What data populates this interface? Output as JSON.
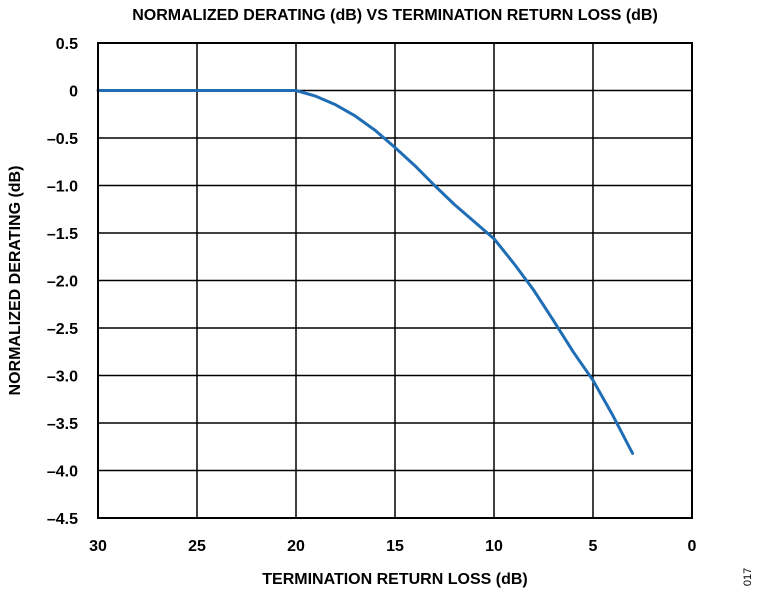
{
  "chart_data": {
    "type": "line",
    "title": "NORMALIZED DERATING (dB) VS TERMINATION RETURN LOSS (dB)",
    "xlabel": "TERMINATION RETURN LOSS (dB)",
    "ylabel": "NORMALIZED DERATING (dB)",
    "xlim": [
      30,
      0
    ],
    "ylim": [
      -4.5,
      0.5
    ],
    "x_reversed": true,
    "grid": true,
    "xticks": [
      30,
      25,
      20,
      15,
      10,
      5,
      0
    ],
    "xtick_labels": [
      "30",
      "25",
      "20",
      "15",
      "10",
      "5",
      "0"
    ],
    "yticks": [
      0.5,
      0,
      -0.5,
      -1.0,
      -1.5,
      -2.0,
      -2.5,
      -3.0,
      -3.5,
      -4.0,
      -4.5
    ],
    "ytick_labels": [
      "0.5",
      "0",
      "–0.5",
      "–1.0",
      "–1.5",
      "–2.0",
      "–2.5",
      "–3.0",
      "–3.5",
      "–4.0",
      "–4.5"
    ],
    "series": [
      {
        "color": "#1f6db5",
        "x": [
          30,
          25,
          20,
          19,
          18,
          17,
          16,
          15,
          14,
          13,
          12,
          11,
          10,
          9,
          8,
          7,
          6,
          5,
          4,
          3
        ],
        "y": [
          0,
          0,
          0,
          -0.06,
          -0.15,
          -0.27,
          -0.42,
          -0.6,
          -0.79,
          -1.0,
          -1.2,
          -1.38,
          -1.56,
          -1.82,
          -2.1,
          -2.42,
          -2.75,
          -3.05,
          -3.42,
          -3.82
        ]
      }
    ],
    "figure_id": "017"
  }
}
